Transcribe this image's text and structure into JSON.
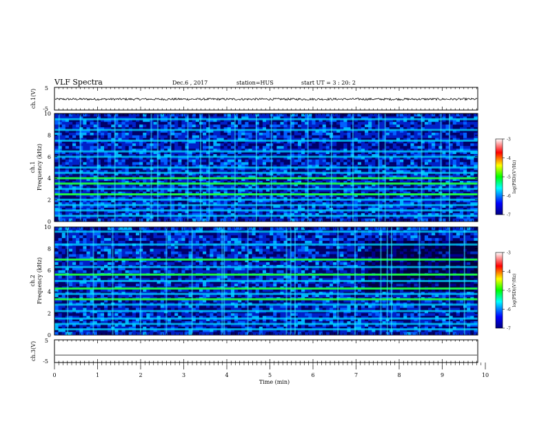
{
  "header": {
    "title": "VLF Spectra",
    "date": "Dec.6 , 2017",
    "station": "station=HUS",
    "start": "start UT = 3 : 20: 2"
  },
  "colors": {
    "background_dark": "#00008b",
    "spectrogram_mid": "#0050ff",
    "spectrogram_cyan": "#00e5ff",
    "spectrogram_green": "#20ff20",
    "trace": "#000000"
  },
  "chart_data": [
    {
      "type": "line",
      "panel": "ch1-waveform",
      "ylabel": "ch.1(V)",
      "ylim": [
        -5,
        5
      ],
      "y_ticks": [
        "5",
        "-5"
      ],
      "x_range": [
        0,
        10
      ],
      "series": [
        {
          "values": "noisy trace near 0 V across 0–9.85 min"
        }
      ]
    },
    {
      "type": "heatmap",
      "panel": "ch1-spectrogram",
      "ylabel": "ch.1 Frequency (kHz)",
      "ylim": [
        0,
        10
      ],
      "y_ticks": [
        "0",
        "2",
        "4",
        "6",
        "8",
        "10"
      ],
      "x_range": [
        0,
        9.85
      ],
      "bands_khz": [
        0.5,
        1.0,
        1.5,
        2.0,
        2.5,
        3.0,
        3.5,
        4.0,
        4.5,
        5.0,
        6.0,
        6.5,
        7.5,
        8.5,
        9.5
      ],
      "strong_bands_khz": [
        2.5,
        3.5,
        4.0,
        4.2
      ],
      "vertical_bursts_min": [
        0.1,
        0.6,
        1.0,
        1.4,
        2.25,
        2.4,
        2.7,
        3.1,
        3.4,
        3.6,
        4.2,
        4.7,
        5.05,
        5.5,
        5.9,
        6.45,
        6.95,
        7.55,
        7.7,
        8.55,
        9.0,
        9.2
      ],
      "colorbar": {
        "label": "log(PSD)(V²/Hz)",
        "range": [
          -7,
          -3
        ],
        "ticks": [
          "-3",
          "-4",
          "-5",
          "-6",
          "-7"
        ]
      }
    },
    {
      "type": "heatmap",
      "panel": "ch2-spectrogram",
      "ylabel": "ch.2 Frequency (kHz)",
      "ylim": [
        0,
        10
      ],
      "y_ticks": [
        "0",
        "2",
        "4",
        "6",
        "8",
        "10"
      ],
      "x_range": [
        0,
        9.85
      ],
      "bands_khz": [
        0.5,
        1.0,
        1.5,
        2.2,
        2.8,
        3.3,
        3.8,
        4.3,
        5.0,
        5.6,
        6.3,
        7.0,
        8.4,
        9.6
      ],
      "strong_bands_khz": [
        3.3,
        4.3,
        5.6,
        7.0
      ],
      "vertical_bursts_min": [
        0.3,
        0.9,
        1.35,
        2.0,
        2.6,
        3.2,
        3.9,
        3.95,
        4.5,
        5.4,
        5.5,
        5.6,
        6.6,
        7.0,
        7.6,
        7.75,
        7.85,
        8.5,
        9.2,
        9.55
      ],
      "dark_region_min": [
        7.2,
        9.85
      ],
      "colorbar": {
        "label": "log(PSD)(V²/Hz)",
        "range": [
          -7,
          -3
        ],
        "ticks": [
          "-3",
          "-4",
          "-5",
          "-6",
          "-7"
        ]
      }
    },
    {
      "type": "line",
      "panel": "ch3-waveform",
      "ylabel": "ch.3(V)",
      "ylim": [
        -5,
        5
      ],
      "y_ticks": [
        "5",
        "-5"
      ],
      "x_range": [
        0,
        10
      ],
      "series": [
        {
          "values": "flat trace at about -1.7 V across 0–9.85 min"
        }
      ]
    }
  ],
  "x_axis": {
    "label": "Time (min)",
    "ticks": [
      "0",
      "1",
      "2",
      "3",
      "4",
      "5",
      "6",
      "7",
      "8",
      "9",
      "10"
    ]
  }
}
